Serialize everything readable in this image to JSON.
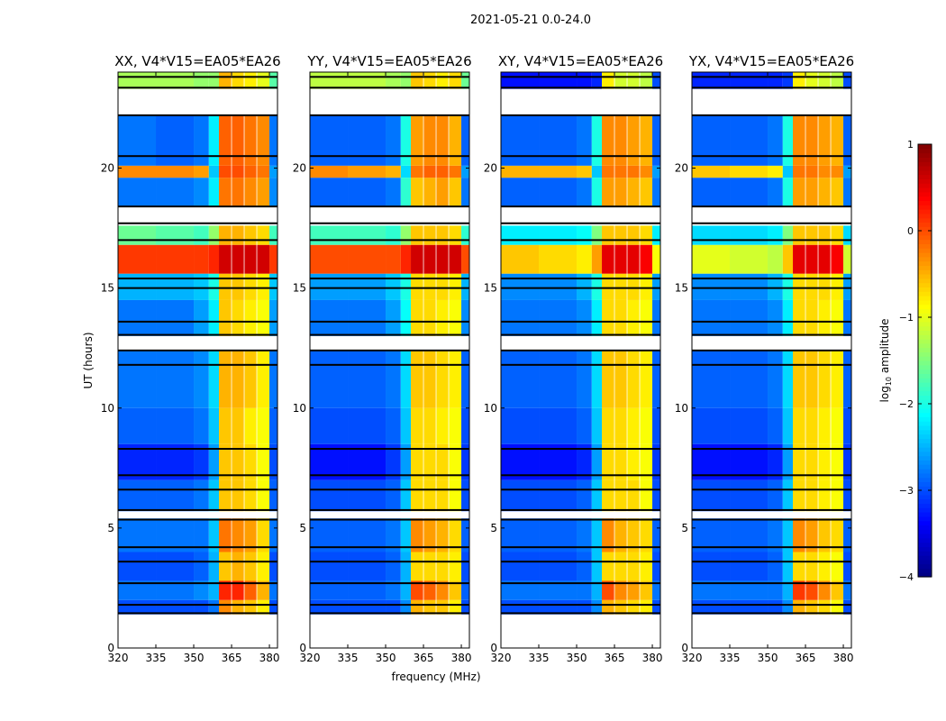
{
  "chart_data": {
    "type": "heatmap",
    "title": "2021-05-21 0.0-24.0",
    "xlabel": "frequency (MHz)",
    "ylabel": "UT (hours)",
    "xlim": [
      320,
      383.2
    ],
    "ylim": [
      0,
      24
    ],
    "x_ticks": [
      320,
      335,
      350,
      365,
      380
    ],
    "x_tick_labels": [
      "320",
      "335",
      "350",
      "365",
      "380"
    ],
    "y_ticks": [
      0,
      5,
      10,
      15,
      20
    ],
    "y_tick_labels": [
      "0",
      "5",
      "10",
      "15",
      "20"
    ],
    "freq_bin_edges": [
      320,
      335,
      350,
      356,
      360,
      365,
      370,
      375,
      380,
      383.2
    ],
    "time_bin_edges": [
      0,
      1.4,
      2.0,
      2.8,
      4.0,
      5.4,
      5.7,
      7.0,
      8.5,
      10.0,
      12.4,
      13.0,
      14.5,
      15.6,
      16.8,
      17.6,
      18.4,
      19.6,
      20.1,
      22.2,
      23.3,
      24.0
    ],
    "flag_lines_hours": [
      1.45,
      1.8,
      2.7,
      3.6,
      4.2,
      5.35,
      5.75,
      6.6,
      7.2,
      8.3,
      11.8,
      12.4,
      13.05,
      13.6,
      15.0,
      15.4,
      17.0,
      17.7,
      18.4,
      20.5,
      22.2,
      23.35,
      23.8
    ],
    "colorbar": {
      "label": "log10 amplitude",
      "label_main": "log",
      "label_sub": "10",
      "label_rest": " amplitude",
      "colormap": "jet",
      "range": [
        -4,
        1
      ],
      "ticks": [
        1,
        0,
        -1,
        -2,
        -3,
        -4
      ],
      "tick_labels": [
        "1",
        "0",
        "−1",
        "−2",
        "−3",
        "−4"
      ]
    },
    "panels": [
      {
        "title": "XX, V4*V15=EA05*EA26",
        "values": [
          null,
          [
            -3,
            -3,
            -3,
            -2.8,
            -0.3,
            -0.5,
            -0.6,
            -0.8,
            -3
          ],
          [
            -2.8,
            -2.8,
            -2.7,
            -2.5,
            0.2,
            0.2,
            -0.1,
            -0.5,
            -2.8
          ],
          [
            -3,
            -3,
            -2.9,
            -2.5,
            -0.6,
            -0.5,
            -0.6,
            -0.8,
            -3
          ],
          [
            -2.8,
            -2.8,
            -2.8,
            -2.4,
            -0.2,
            -0.3,
            -0.4,
            -0.7,
            -2.8
          ],
          null,
          [
            -2.9,
            -2.9,
            -2.8,
            -2.4,
            -0.6,
            -0.6,
            -0.7,
            -0.9,
            -2.9
          ],
          [
            -3.2,
            -3.2,
            -3.1,
            -2.6,
            -0.6,
            -0.6,
            -0.7,
            -0.9,
            -3
          ],
          [
            -2.9,
            -2.9,
            -2.8,
            -2.4,
            -0.6,
            -0.6,
            -0.8,
            -0.9,
            -2.9
          ],
          [
            -2.8,
            -2.8,
            -2.7,
            -2.3,
            -0.5,
            -0.5,
            -0.6,
            -0.8,
            -2.8
          ],
          null,
          [
            -2.8,
            -2.8,
            -2.6,
            -2.2,
            -0.6,
            -0.7,
            -0.8,
            -0.9,
            -2.6
          ],
          [
            -2.5,
            -2.5,
            -2.4,
            -2,
            -0.6,
            -0.6,
            -0.7,
            -0.8,
            -2.4
          ],
          [
            0.1,
            0.1,
            0.1,
            0.2,
            0.6,
            0.6,
            0.6,
            0.6,
            0.1
          ],
          [
            -1.6,
            -1.7,
            -1.8,
            -1.4,
            -0.5,
            -0.5,
            -0.6,
            -0.7,
            -1.8
          ],
          null,
          [
            -2.8,
            -2.8,
            -2.7,
            -2.2,
            -0.2,
            -0.2,
            -0.3,
            -0.4,
            -2.7
          ],
          [
            -0.3,
            -0.3,
            -0.4,
            -2.4,
            0,
            0,
            -0.1,
            -0.2,
            -2.6
          ],
          [
            -2.8,
            -2.9,
            -2.8,
            -2.2,
            -0.1,
            -0.1,
            -0.2,
            -0.3,
            -2.8
          ],
          null,
          [
            -1.3,
            -1.3,
            -1.4,
            -1.4,
            -0.5,
            -0.7,
            -0.8,
            -1.0,
            -1.7
          ]
        ]
      },
      {
        "title": "YY, V4*V15=EA05*EA26",
        "values": [
          null,
          [
            -3,
            -3,
            -3,
            -2.7,
            -0.5,
            -0.6,
            -0.6,
            -0.8,
            -3
          ],
          [
            -2.9,
            -2.9,
            -2.8,
            -2.5,
            0,
            -0.1,
            -0.3,
            -0.6,
            -2.9
          ],
          [
            -3,
            -3,
            -2.9,
            -2.5,
            -0.7,
            -0.7,
            -0.7,
            -0.8,
            -3
          ],
          [
            -2.9,
            -2.9,
            -2.8,
            -2.4,
            -0.3,
            -0.4,
            -0.5,
            -0.7,
            -2.9
          ],
          null,
          [
            -3,
            -3,
            -2.9,
            -2.4,
            -0.7,
            -0.7,
            -0.7,
            -0.9,
            -3
          ],
          [
            -3.3,
            -3.3,
            -3.1,
            -2.6,
            -0.7,
            -0.7,
            -0.7,
            -0.9,
            -3.1
          ],
          [
            -3,
            -3,
            -2.9,
            -2.4,
            -0.7,
            -0.7,
            -0.8,
            -0.9,
            -3
          ],
          [
            -2.9,
            -2.9,
            -2.8,
            -2.3,
            -0.6,
            -0.6,
            -0.7,
            -0.8,
            -2.9
          ],
          null,
          [
            -2.8,
            -2.8,
            -2.6,
            -2.1,
            -0.7,
            -0.7,
            -0.8,
            -0.9,
            -2.7
          ],
          [
            -2.6,
            -2.6,
            -2.4,
            -2,
            -0.7,
            -0.7,
            -0.7,
            -0.8,
            -2.5
          ],
          [
            0,
            0,
            0,
            0.2,
            0.6,
            0.6,
            0.6,
            0.6,
            0
          ],
          [
            -1.8,
            -1.8,
            -1.9,
            -1.4,
            -0.6,
            -0.6,
            -0.6,
            -0.7,
            -1.9
          ],
          null,
          [
            -2.9,
            -2.9,
            -2.8,
            -1.9,
            -0.6,
            -0.5,
            -0.4,
            -0.6,
            -2.8
          ],
          [
            -0.3,
            -0.4,
            -0.5,
            -2.3,
            -0.2,
            -0.1,
            -0.1,
            -0.2,
            -2.6
          ],
          [
            -2.9,
            -2.9,
            -2.8,
            -2.0,
            -0.4,
            -0.3,
            -0.3,
            -0.5,
            -2.9
          ],
          null,
          [
            -1.2,
            -1.2,
            -1.3,
            -1.4,
            -0.6,
            -0.7,
            -0.8,
            -0.7,
            -1.6
          ]
        ]
      },
      {
        "title": "XY, V4*V15=EA05*EA26",
        "values": [
          null,
          [
            -3,
            -3,
            -3,
            -2.7,
            -0.5,
            -0.6,
            -0.7,
            -0.8,
            -3
          ],
          [
            -2.8,
            -2.8,
            -2.8,
            -2.5,
            0,
            -0.3,
            -0.4,
            -0.6,
            -2.8
          ],
          [
            -3,
            -3,
            -2.9,
            -2.4,
            -0.7,
            -0.7,
            -0.7,
            -0.8,
            -3
          ],
          [
            -2.9,
            -2.9,
            -2.8,
            -2.4,
            -0.3,
            -0.5,
            -0.6,
            -0.7,
            -2.9
          ],
          null,
          [
            -3,
            -3,
            -2.9,
            -2.4,
            -0.7,
            -0.7,
            -0.7,
            -0.9,
            -3
          ],
          [
            -3.3,
            -3.3,
            -3.2,
            -2.6,
            -0.7,
            -0.7,
            -0.8,
            -0.9,
            -3.1
          ],
          [
            -3,
            -3,
            -2.9,
            -2.4,
            -0.7,
            -0.7,
            -0.8,
            -0.9,
            -3
          ],
          [
            -2.9,
            -2.9,
            -2.8,
            -2.3,
            -0.6,
            -0.6,
            -0.7,
            -0.8,
            -2.9
          ],
          null,
          [
            -2.8,
            -2.8,
            -2.7,
            -2.2,
            -0.7,
            -0.7,
            -0.8,
            -0.9,
            -2.8
          ],
          [
            -2.7,
            -2.7,
            -2.5,
            -2.0,
            -0.7,
            -0.7,
            -0.7,
            -0.8,
            -2.6
          ],
          [
            -0.6,
            -0.7,
            -0.8,
            -0.4,
            0.5,
            0.5,
            0.5,
            0.4,
            -0.9
          ],
          [
            -2.2,
            -2.2,
            -2.1,
            -1.5,
            -0.6,
            -0.6,
            -0.6,
            -0.7,
            -2.2
          ],
          null,
          [
            -2.9,
            -2.9,
            -2.8,
            -2.0,
            -0.4,
            -0.4,
            -0.5,
            -0.6,
            -2.8
          ],
          [
            -0.5,
            -0.5,
            -0.6,
            -2.4,
            -0.2,
            -0.2,
            -0.2,
            -0.3,
            -2.6
          ],
          [
            -2.9,
            -2.9,
            -2.8,
            -2.0,
            -0.3,
            -0.3,
            -0.4,
            -0.5,
            -2.9
          ],
          null,
          [
            -3.3,
            -3.3,
            -3.3,
            -3.2,
            -0.8,
            -1.1,
            -1.1,
            -1.2,
            -3.0
          ]
        ]
      },
      {
        "title": "YX, V4*V15=EA05*EA26",
        "values": [
          null,
          [
            -3,
            -3,
            -3,
            -2.7,
            -0.5,
            -0.6,
            -0.7,
            -0.9,
            -3
          ],
          [
            -2.8,
            -2.8,
            -2.8,
            -2.5,
            0.1,
            0,
            -0.3,
            -0.6,
            -2.8
          ],
          [
            -3,
            -3,
            -2.9,
            -2.4,
            -0.7,
            -0.7,
            -0.8,
            -0.9,
            -3
          ],
          [
            -2.9,
            -2.9,
            -2.8,
            -2.4,
            -0.3,
            -0.4,
            -0.6,
            -0.7,
            -2.9
          ],
          null,
          [
            -3,
            -3,
            -2.9,
            -2.4,
            -0.7,
            -0.7,
            -0.8,
            -0.9,
            -3
          ],
          [
            -3.3,
            -3.3,
            -3.2,
            -2.6,
            -0.7,
            -0.7,
            -0.8,
            -0.9,
            -3.1
          ],
          [
            -3,
            -3,
            -2.9,
            -2.4,
            -0.7,
            -0.7,
            -0.8,
            -0.9,
            -3
          ],
          [
            -2.9,
            -2.9,
            -2.8,
            -2.3,
            -0.6,
            -0.6,
            -0.7,
            -0.8,
            -2.9
          ],
          null,
          [
            -2.8,
            -2.8,
            -2.7,
            -2.2,
            -0.7,
            -0.7,
            -0.8,
            -0.9,
            -2.8
          ],
          [
            -2.7,
            -2.7,
            -2.5,
            -2.0,
            -0.7,
            -0.7,
            -0.7,
            -0.8,
            -2.6
          ],
          [
            -1.0,
            -1.1,
            -1.2,
            -0.6,
            0.5,
            0.5,
            0.5,
            0.4,
            -1.1
          ],
          [
            -2.3,
            -2.3,
            -2.2,
            -1.5,
            -0.6,
            -0.6,
            -0.6,
            -0.7,
            -2.3
          ],
          null,
          [
            -2.9,
            -2.9,
            -2.8,
            -2.0,
            -0.4,
            -0.4,
            -0.5,
            -0.6,
            -2.8
          ],
          [
            -0.6,
            -0.7,
            -0.8,
            -2.4,
            -0.2,
            -0.2,
            -0.3,
            -0.3,
            -2.6
          ],
          [
            -2.9,
            -2.9,
            -2.8,
            -2.0,
            -0.3,
            -0.3,
            -0.4,
            -0.5,
            -2.9
          ],
          null,
          [
            -3.2,
            -3.2,
            -3.2,
            -3.1,
            -0.8,
            -1.0,
            -1.1,
            -1.2,
            -3.0
          ]
        ]
      }
    ]
  }
}
